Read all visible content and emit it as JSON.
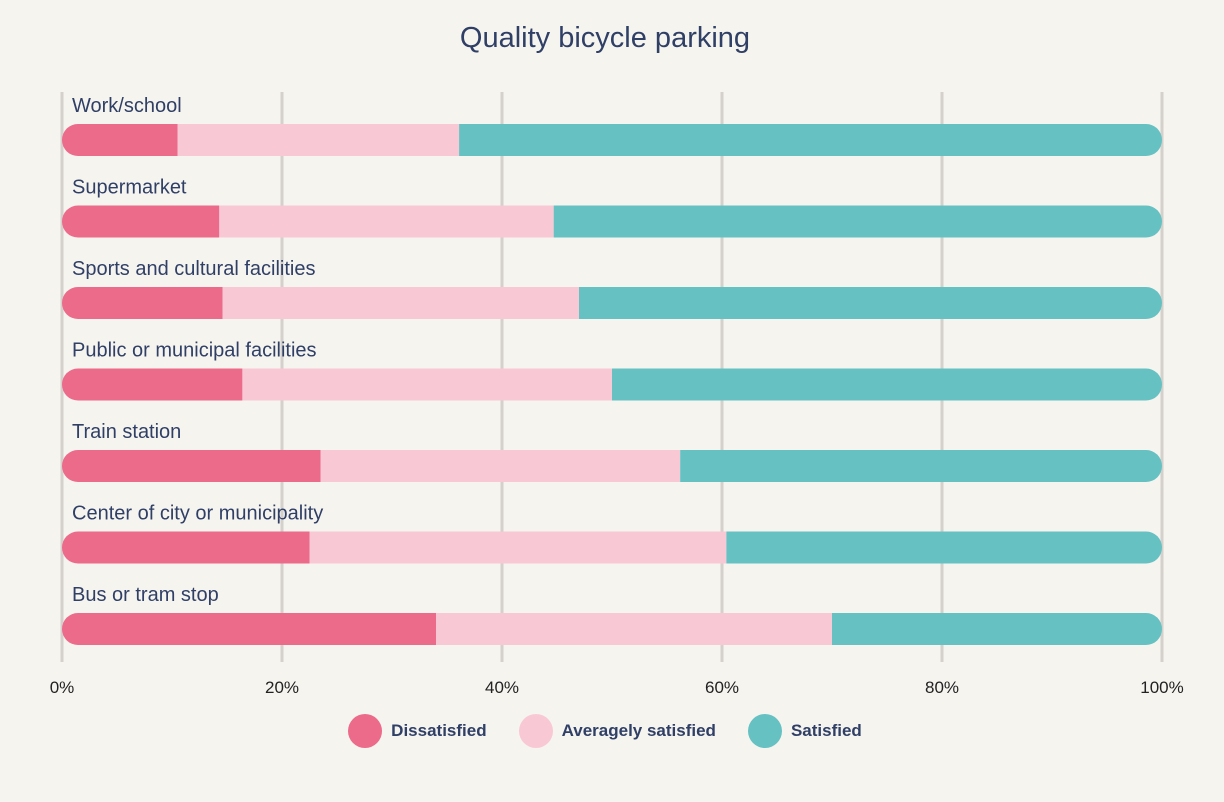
{
  "chart_data": {
    "type": "bar",
    "orientation": "horizontal",
    "stacked": true,
    "title": "Quality bicycle parking",
    "categories": [
      "Work/school",
      "Supermarket",
      "Sports and cultural facilities",
      "Public or municipal facilities",
      "Train station",
      "Center of city or municipality",
      "Bus or tram stop"
    ],
    "series": [
      {
        "name": "Dissatisfied",
        "color": "#ec6a8a",
        "values": [
          10.5,
          14.3,
          14.6,
          16.4,
          23.5,
          22.5,
          34
        ]
      },
      {
        "name": "Averagely satisfied",
        "color": "#f8c8d5",
        "values": [
          25.6,
          30.4,
          32.4,
          33.6,
          32.7,
          37.9,
          36
        ]
      },
      {
        "name": "Satisfied",
        "color": "#66c1c3",
        "values": [
          63.9,
          55.3,
          53.0,
          50.0,
          43.8,
          39.6,
          30
        ]
      }
    ],
    "x_ticks": [
      "0%",
      "20%",
      "40%",
      "60%",
      "80%",
      "100%"
    ],
    "xlim": [
      0,
      100
    ],
    "grid": true,
    "legend_position": "bottom"
  }
}
